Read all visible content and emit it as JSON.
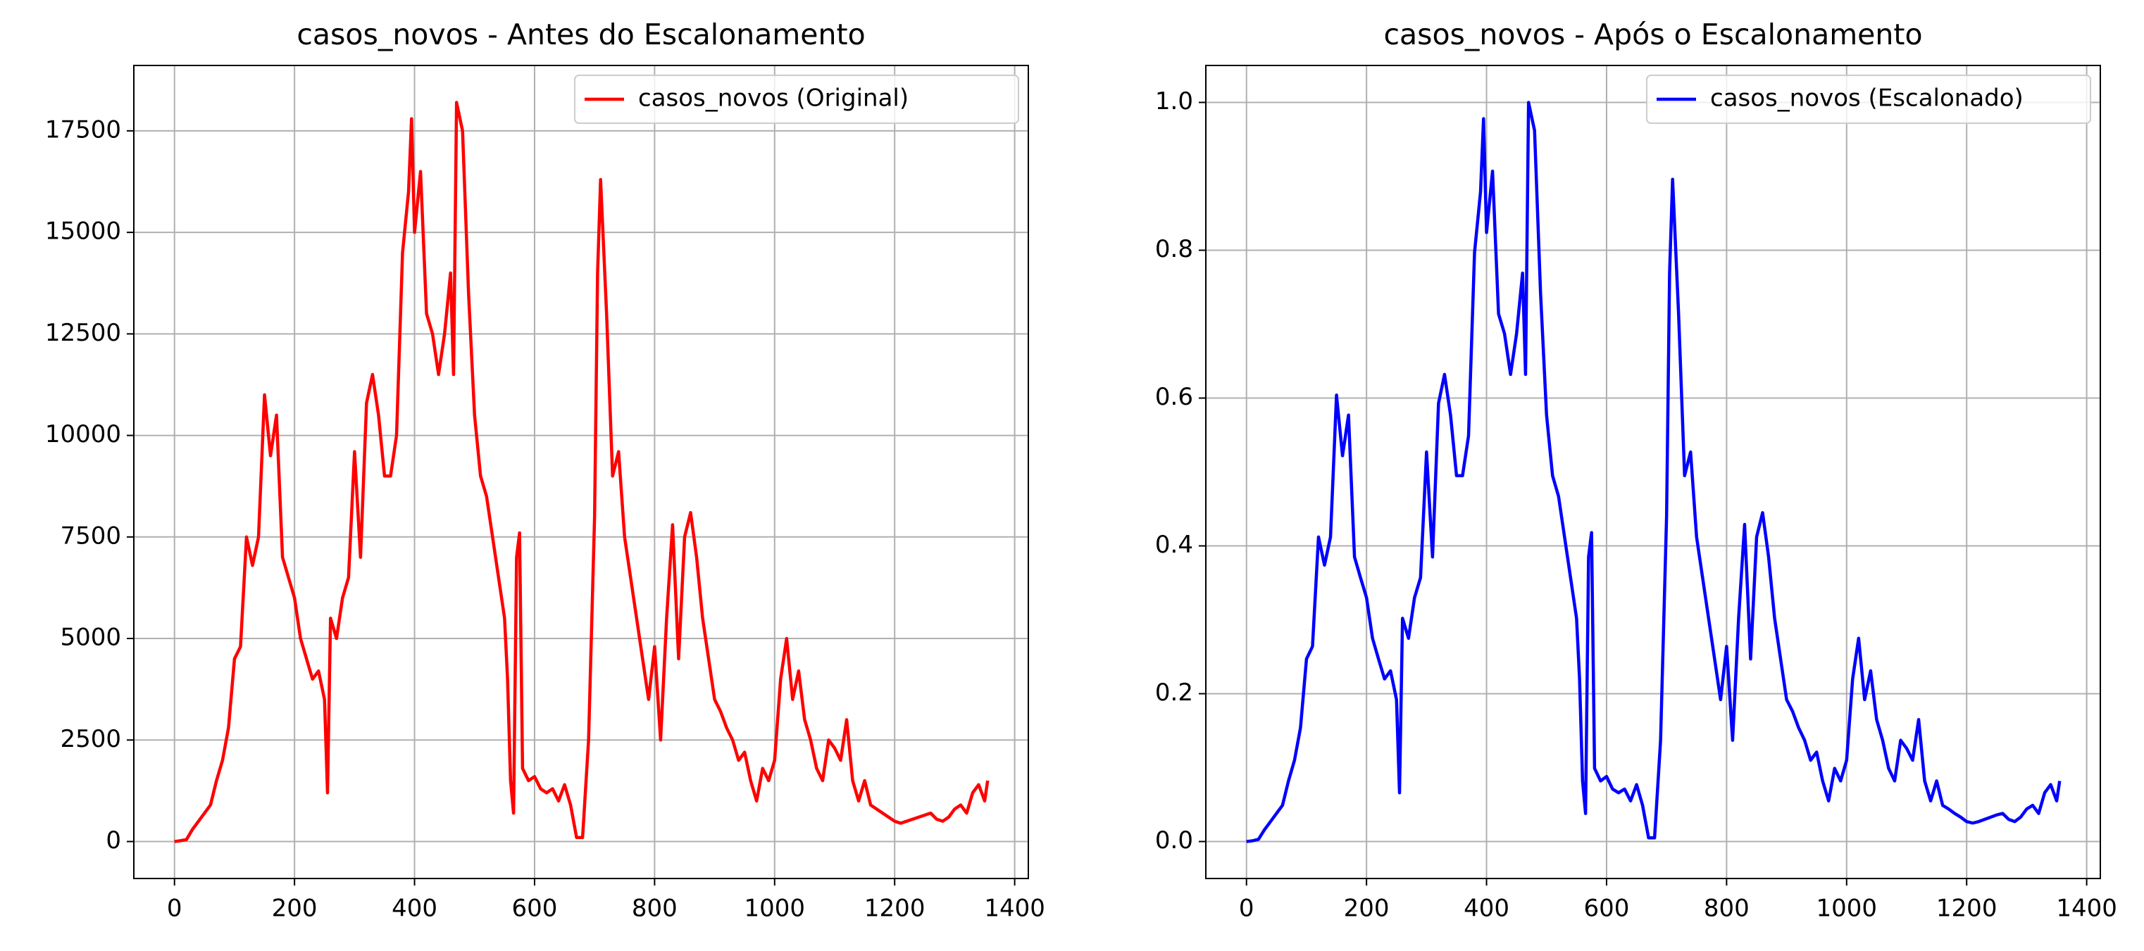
{
  "chart_data": [
    {
      "type": "line",
      "title": "casos_novos - Antes do Escalonamento",
      "x": [
        0,
        10,
        20,
        30,
        40,
        50,
        60,
        70,
        80,
        90,
        100,
        110,
        120,
        130,
        140,
        150,
        160,
        170,
        180,
        190,
        200,
        210,
        220,
        230,
        240,
        250,
        255,
        260,
        270,
        280,
        290,
        300,
        310,
        320,
        330,
        340,
        350,
        360,
        370,
        380,
        390,
        395,
        400,
        410,
        420,
        430,
        440,
        450,
        460,
        465,
        470,
        480,
        490,
        500,
        510,
        520,
        530,
        540,
        550,
        555,
        560,
        565,
        570,
        575,
        580,
        590,
        600,
        610,
        620,
        630,
        640,
        650,
        660,
        670,
        680,
        690,
        700,
        705,
        710,
        720,
        730,
        740,
        750,
        760,
        770,
        780,
        790,
        800,
        810,
        820,
        830,
        840,
        850,
        860,
        870,
        880,
        890,
        900,
        910,
        920,
        930,
        940,
        950,
        960,
        970,
        980,
        990,
        1000,
        1010,
        1020,
        1030,
        1040,
        1050,
        1060,
        1070,
        1080,
        1090,
        1100,
        1110,
        1120,
        1130,
        1140,
        1150,
        1160,
        1170,
        1180,
        1190,
        1200,
        1210,
        1220,
        1230,
        1240,
        1250,
        1260,
        1270,
        1280,
        1290,
        1300,
        1310,
        1320,
        1330,
        1340,
        1350,
        1355
      ],
      "series": [
        {
          "name": "casos_novos (Original)",
          "color": "#ff0000",
          "values": [
            0,
            20,
            50,
            300,
            500,
            700,
            900,
            1500,
            2000,
            2800,
            4500,
            4800,
            7500,
            6800,
            7500,
            11000,
            9500,
            10500,
            7000,
            6500,
            6000,
            5000,
            4500,
            4000,
            4200,
            3500,
            1200,
            5500,
            5000,
            6000,
            6500,
            9600,
            7000,
            10800,
            11500,
            10500,
            9000,
            9000,
            10000,
            14500,
            16000,
            17800,
            15000,
            16500,
            13000,
            12500,
            11500,
            12500,
            14000,
            11500,
            18200,
            17500,
            13500,
            10500,
            9000,
            8500,
            7500,
            6500,
            5500,
            4000,
            1500,
            700,
            7000,
            7600,
            1800,
            1500,
            1600,
            1300,
            1200,
            1300,
            1000,
            1400,
            900,
            100,
            100,
            2500,
            8000,
            14000,
            16300,
            13000,
            9000,
            9600,
            7500,
            6500,
            5500,
            4500,
            3500,
            4800,
            2500,
            5500,
            7800,
            4500,
            7500,
            8100,
            7000,
            5500,
            4500,
            3500,
            3200,
            2800,
            2500,
            2000,
            2200,
            1500,
            1000,
            1800,
            1500,
            2000,
            4000,
            5000,
            3500,
            4200,
            3000,
            2500,
            1800,
            1500,
            2500,
            2300,
            2000,
            3000,
            1500,
            1000,
            1500,
            900,
            800,
            700,
            600,
            500,
            450,
            500,
            550,
            600,
            650,
            700,
            550,
            500,
            600,
            800,
            900,
            700,
            1200,
            1400,
            1000,
            1500
          ]
        }
      ],
      "xlim": [
        -67.75,
        1422.75
      ],
      "xticks": [
        0,
        200,
        400,
        600,
        800,
        1000,
        1200,
        1400
      ],
      "ylim": [
        -910,
        19110
      ],
      "yticks": [
        0,
        2500,
        5000,
        7500,
        10000,
        12500,
        15000,
        17500
      ],
      "grid": true,
      "legend": "upper right"
    },
    {
      "type": "line",
      "title": "casos_novos - Após o Escalonamento",
      "x": [
        0,
        10,
        20,
        30,
        40,
        50,
        60,
        70,
        80,
        90,
        100,
        110,
        120,
        130,
        140,
        150,
        160,
        170,
        180,
        190,
        200,
        210,
        220,
        230,
        240,
        250,
        255,
        260,
        270,
        280,
        290,
        300,
        310,
        320,
        330,
        340,
        350,
        360,
        370,
        380,
        390,
        395,
        400,
        410,
        420,
        430,
        440,
        450,
        460,
        465,
        470,
        480,
        490,
        500,
        510,
        520,
        530,
        540,
        550,
        555,
        560,
        565,
        570,
        575,
        580,
        590,
        600,
        610,
        620,
        630,
        640,
        650,
        660,
        670,
        680,
        690,
        700,
        705,
        710,
        720,
        730,
        740,
        750,
        760,
        770,
        780,
        790,
        800,
        810,
        820,
        830,
        840,
        850,
        860,
        870,
        880,
        890,
        900,
        910,
        920,
        930,
        940,
        950,
        960,
        970,
        980,
        990,
        1000,
        1010,
        1020,
        1030,
        1040,
        1050,
        1060,
        1070,
        1080,
        1090,
        1100,
        1110,
        1120,
        1130,
        1140,
        1150,
        1160,
        1170,
        1180,
        1190,
        1200,
        1210,
        1220,
        1230,
        1240,
        1250,
        1260,
        1270,
        1280,
        1290,
        1300,
        1310,
        1320,
        1330,
        1340,
        1350,
        1355
      ],
      "series": [
        {
          "name": "casos_novos (Escalonado)",
          "color": "#0000ff",
          "values": [
            0,
            0.001,
            0.003,
            0.016,
            0.027,
            0.038,
            0.049,
            0.082,
            0.11,
            0.154,
            0.247,
            0.264,
            0.412,
            0.374,
            0.412,
            0.604,
            0.522,
            0.577,
            0.385,
            0.357,
            0.33,
            0.275,
            0.247,
            0.22,
            0.231,
            0.192,
            0.066,
            0.302,
            0.275,
            0.33,
            0.357,
            0.527,
            0.385,
            0.593,
            0.632,
            0.577,
            0.495,
            0.495,
            0.549,
            0.797,
            0.879,
            0.978,
            0.824,
            0.907,
            0.714,
            0.687,
            0.632,
            0.687,
            0.769,
            0.632,
            1.0,
            0.962,
            0.742,
            0.577,
            0.495,
            0.467,
            0.412,
            0.357,
            0.302,
            0.22,
            0.082,
            0.038,
            0.385,
            0.418,
            0.099,
            0.082,
            0.088,
            0.071,
            0.066,
            0.071,
            0.055,
            0.077,
            0.049,
            0.005,
            0.005,
            0.137,
            0.44,
            0.769,
            0.896,
            0.714,
            0.495,
            0.527,
            0.412,
            0.357,
            0.302,
            0.247,
            0.192,
            0.264,
            0.137,
            0.302,
            0.429,
            0.247,
            0.412,
            0.445,
            0.385,
            0.302,
            0.247,
            0.192,
            0.176,
            0.154,
            0.137,
            0.11,
            0.121,
            0.082,
            0.055,
            0.099,
            0.082,
            0.11,
            0.22,
            0.275,
            0.192,
            0.231,
            0.165,
            0.137,
            0.099,
            0.082,
            0.137,
            0.126,
            0.11,
            0.165,
            0.082,
            0.055,
            0.082,
            0.049,
            0.044,
            0.038,
            0.033,
            0.027,
            0.025,
            0.027,
            0.03,
            0.033,
            0.036,
            0.038,
            0.03,
            0.027,
            0.033,
            0.044,
            0.049,
            0.038,
            0.066,
            0.077,
            0.055,
            0.082
          ]
        }
      ],
      "xlim": [
        -67.75,
        1422.75
      ],
      "xticks": [
        0,
        200,
        400,
        600,
        800,
        1000,
        1200,
        1400
      ],
      "ylim": [
        -0.05,
        1.05
      ],
      "yticks": [
        {
          "value": 0,
          "label": "0.0"
        },
        0.2,
        0.4,
        0.6,
        0.8,
        {
          "value": 1,
          "label": "1.0"
        }
      ],
      "grid": true,
      "legend": "upper right"
    }
  ]
}
